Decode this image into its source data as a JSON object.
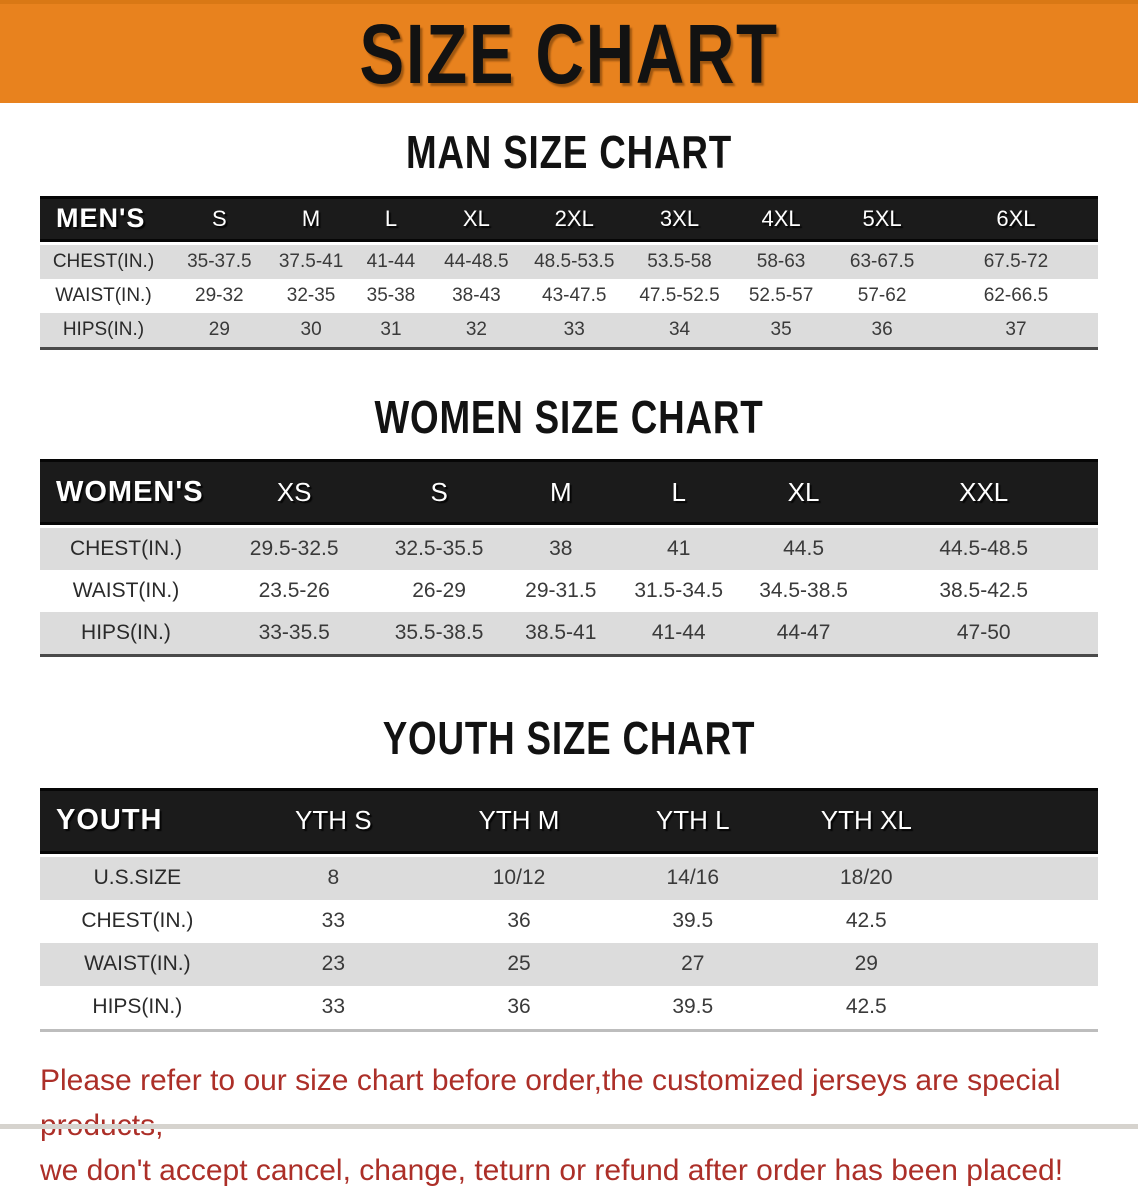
{
  "banner": {
    "title": "SIZE CHART"
  },
  "sections": {
    "men": {
      "title": "MAN SIZE CHART"
    },
    "women": {
      "title": "WOMEN SIZE CHART"
    },
    "youth": {
      "title": "YOUTH SIZE CHART"
    }
  },
  "tables": {
    "men": {
      "header": [
        "MEN'S",
        "S",
        "M",
        "L",
        "XL",
        "2XL",
        "3XL",
        "4XL",
        "5XL",
        "6XL"
      ],
      "col_widths": [
        "12%",
        "9.9%",
        "7.45%",
        "7.65%",
        "8.5%",
        "10%",
        "9.9%",
        "9.3%",
        "9.8%",
        "15.5%"
      ],
      "trailing_blank": false,
      "rows": [
        {
          "label": "CHEST(IN.)",
          "values": [
            "35-37.5",
            "37.5-41",
            "41-44",
            "44-48.5",
            "48.5-53.5",
            "53.5-58",
            "58-63",
            "63-67.5",
            "67.5-72"
          ]
        },
        {
          "label": "WAIST(IN.)",
          "values": [
            "29-32",
            "32-35",
            "35-38",
            "38-43",
            "43-47.5",
            "47.5-52.5",
            "52.5-57",
            "57-62",
            "62-66.5"
          ]
        },
        {
          "label": "HIPS(IN.)",
          "values": [
            "29",
            "30",
            "31",
            "32",
            "33",
            "34",
            "35",
            "36",
            "37"
          ]
        }
      ]
    },
    "women": {
      "header": [
        "WOMEN'S",
        "XS",
        "S",
        "M",
        "L",
        "XL",
        "XXL"
      ],
      "col_widths": [
        "16.25%",
        "15.55%",
        "11.85%",
        "11.15%",
        "11.15%",
        "12.45%",
        "21.6%"
      ],
      "trailing_blank": false,
      "rows": [
        {
          "label": "CHEST(IN.)",
          "values": [
            "29.5-32.5",
            "32.5-35.5",
            "38",
            "41",
            "44.5",
            "44.5-48.5"
          ]
        },
        {
          "label": "WAIST(IN.)",
          "values": [
            "23.5-26",
            "26-29",
            "29-31.5",
            "31.5-34.5",
            "34.5-38.5",
            "38.5-42.5"
          ]
        },
        {
          "label": "HIPS(IN.)",
          "values": [
            "33-35.5",
            "35.5-38.5",
            "38.5-41",
            "41-44",
            "44-47",
            "47-50"
          ]
        }
      ]
    },
    "youth": {
      "header": [
        "YOUTH",
        "YTH S",
        "YTH M",
        "YTH L",
        "YTH XL"
      ],
      "col_widths": [
        "18.4%",
        "18.65%",
        "16.45%",
        "16.4%",
        "16.4%",
        "13.7%"
      ],
      "trailing_blank": true,
      "rows": [
        {
          "label": "U.S.SIZE",
          "values": [
            "8",
            "10/12",
            "14/16",
            "18/20"
          ]
        },
        {
          "label": "CHEST(IN.)",
          "values": [
            "33",
            "36",
            "39.5",
            "42.5"
          ]
        },
        {
          "label": "WAIST(IN.)",
          "values": [
            "23",
            "25",
            "27",
            "29"
          ]
        },
        {
          "label": "HIPS(IN.)",
          "values": [
            "33",
            "36",
            "39.5",
            "42.5"
          ]
        }
      ]
    }
  },
  "disclaimer": {
    "lines": [
      "Please refer to our size chart before order,the customized jerseys are special products,",
      "we don't accept cancel, change, teturn or refund after order has been placed!"
    ]
  },
  "colors": {
    "banner_bg": "#E8821E",
    "banner_edge": "#D97815",
    "header_band": "#1B1B1B",
    "stripe": "#DCDCDC",
    "data_text": "#3A3A3A",
    "heading_text": "#121212",
    "disclaimer_text": "#AC2F28",
    "bottom_strip": "#D6D3CE"
  }
}
